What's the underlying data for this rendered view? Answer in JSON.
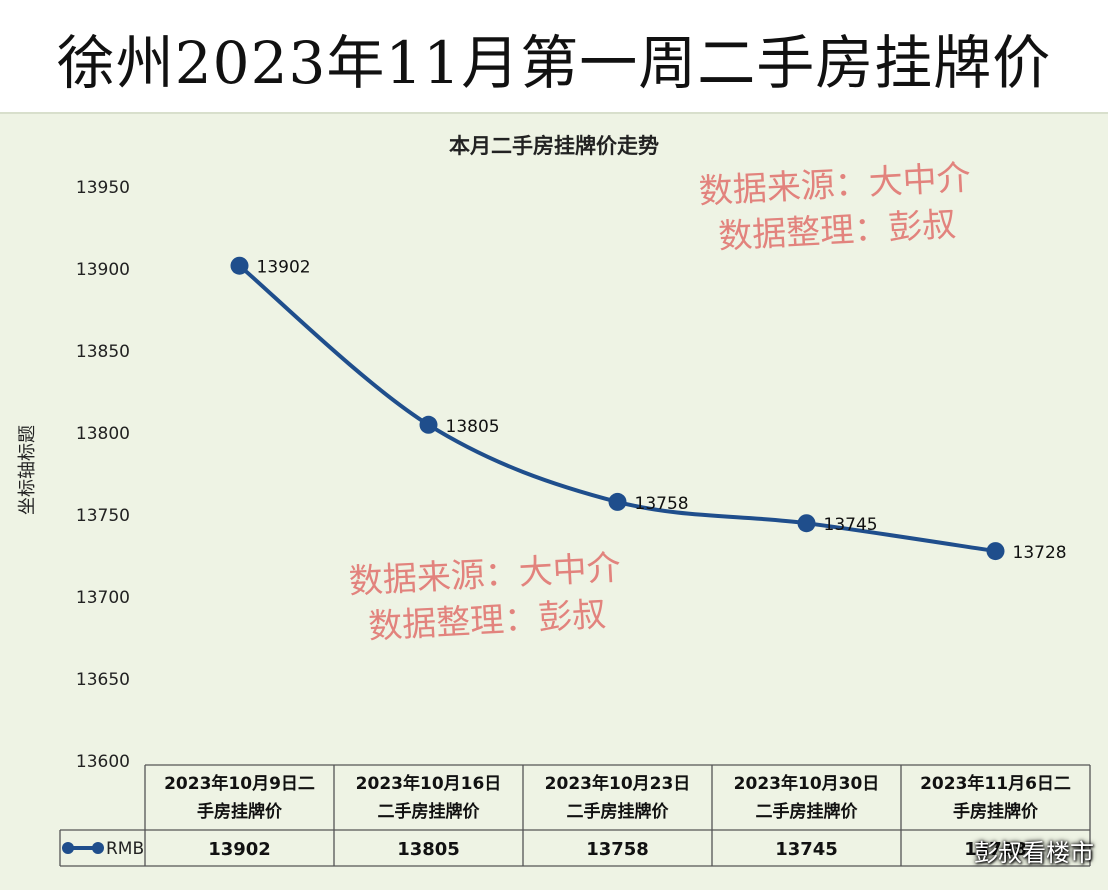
{
  "page": {
    "banner_title": "徐州2023年11月第一周二手房挂牌价",
    "watermark_line1": "数据来源：大中介",
    "watermark_line2": "数据整理：彭叔",
    "brand": "彭叔看楼市"
  },
  "colors": {
    "line": "#1f4e8c",
    "watermark": "#e0706c",
    "background": "#eef3e4"
  },
  "chart_data": {
    "type": "line",
    "title": "本月二手房挂牌价走势",
    "ylabel": "坐标轴标题",
    "xlabel": "",
    "ylim": [
      13600,
      13950
    ],
    "yticks": [
      13600,
      13650,
      13700,
      13750,
      13800,
      13850,
      13900,
      13950
    ],
    "categories": [
      [
        "2023年10月9日二",
        "手房挂牌价"
      ],
      [
        "2023年10月16日",
        "二手房挂牌价"
      ],
      [
        "2023年10月23日",
        "二手房挂牌价"
      ],
      [
        "2023年10月30日",
        "二手房挂牌价"
      ],
      [
        "2023年11月6日二",
        "手房挂牌价"
      ]
    ],
    "series": [
      {
        "name": "RMB",
        "values": [
          13902,
          13805,
          13758,
          13745,
          13728
        ]
      }
    ],
    "grid": false,
    "legend": "data-table"
  }
}
